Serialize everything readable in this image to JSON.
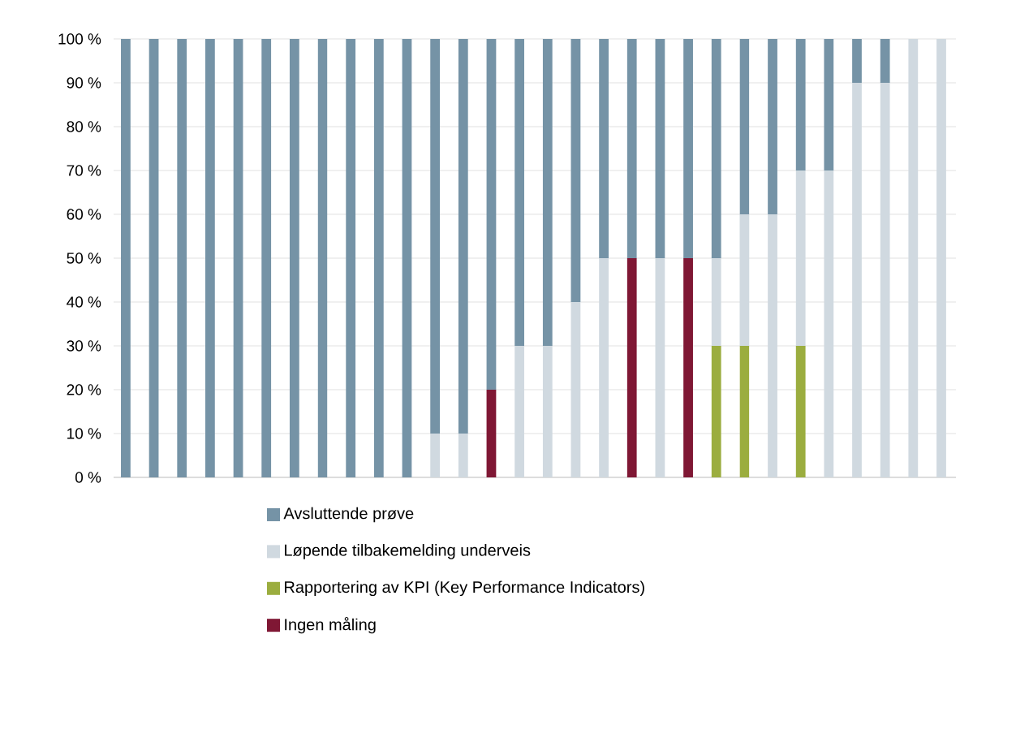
{
  "chart_data": {
    "type": "bar",
    "stacked": true,
    "categories": [
      null,
      null,
      null,
      null,
      null,
      null,
      null,
      null,
      null,
      null,
      null,
      null,
      null,
      null,
      null,
      null,
      null,
      null,
      null,
      null,
      null,
      null,
      null,
      null,
      null,
      null,
      null,
      null,
      null,
      null
    ],
    "series": [
      {
        "name": "Ingen måling",
        "color": "#7f1734",
        "values": [
          null,
          null,
          null,
          null,
          null,
          null,
          null,
          null,
          null,
          null,
          null,
          null,
          null,
          20,
          null,
          null,
          null,
          null,
          50,
          null,
          50,
          null,
          null,
          null,
          null,
          null,
          null,
          null,
          null,
          null
        ]
      },
      {
        "name": "Rapportering av KPI (Key Performance Indicators)",
        "color": "#9bad3f",
        "values": [
          null,
          null,
          null,
          null,
          null,
          null,
          null,
          null,
          null,
          null,
          null,
          null,
          null,
          null,
          null,
          null,
          null,
          null,
          null,
          null,
          null,
          30,
          30,
          null,
          30,
          null,
          null,
          null,
          null,
          null
        ]
      },
      {
        "name": "Løpende tilbakemelding underveis",
        "color": "#d0d9e0",
        "values": [
          null,
          null,
          null,
          null,
          null,
          null,
          null,
          null,
          null,
          null,
          null,
          10,
          10,
          null,
          30,
          30,
          40,
          50,
          null,
          50,
          null,
          20,
          30,
          60,
          40,
          70,
          90,
          90,
          100,
          100
        ]
      },
      {
        "name": "Avsluttende prøve",
        "color": "#7593a6",
        "values": [
          100,
          100,
          100,
          100,
          100,
          100,
          100,
          100,
          100,
          100,
          100,
          90,
          90,
          80,
          70,
          70,
          60,
          50,
          50,
          50,
          50,
          50,
          40,
          40,
          30,
          30,
          10,
          10,
          null,
          null
        ]
      }
    ],
    "ylim": [
      0,
      100
    ],
    "yticks": [
      {
        "value": 0,
        "label": "0 %"
      },
      {
        "value": 10,
        "label": "10 %"
      },
      {
        "value": 20,
        "label": "20 %"
      },
      {
        "value": 30,
        "label": "30 %"
      },
      {
        "value": 40,
        "label": "40 %"
      },
      {
        "value": 50,
        "label": "50 %"
      },
      {
        "value": 60,
        "label": "60 %"
      },
      {
        "value": 70,
        "label": "70 %"
      },
      {
        "value": 80,
        "label": "80 %"
      },
      {
        "value": 90,
        "label": "90 %"
      },
      {
        "value": 100,
        "label": "100 %"
      }
    ],
    "grid": "y",
    "legend": "bottom"
  }
}
